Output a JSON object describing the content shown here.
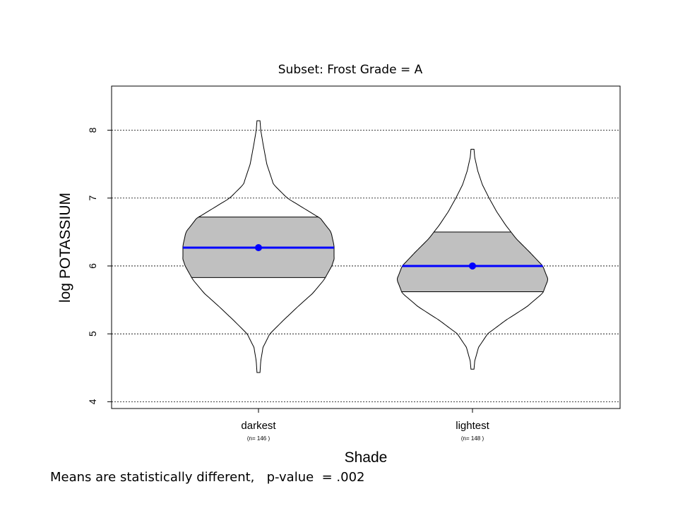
{
  "chart_data": {
    "type": "violin",
    "title": "Subset:  Frost Grade = A",
    "xlabel": "Shade",
    "ylabel": "log POTASSIUM",
    "ylim": [
      3.9,
      8.65
    ],
    "yticks": [
      4,
      5,
      6,
      7,
      8
    ],
    "grid": "horizontal dotted",
    "categories": [
      "darkest",
      "lightest"
    ],
    "counts": [
      "(n= 146 )",
      "(n= 148 )"
    ],
    "groups": [
      {
        "name": "darkest",
        "mean": 6.27,
        "q1": 5.83,
        "q3": 6.72,
        "min": 4.43,
        "max": 8.14,
        "density_profile": [
          [
            4.43,
            0.02
          ],
          [
            4.6,
            0.03
          ],
          [
            4.8,
            0.06
          ],
          [
            5.0,
            0.15
          ],
          [
            5.2,
            0.33
          ],
          [
            5.4,
            0.52
          ],
          [
            5.6,
            0.72
          ],
          [
            5.8,
            0.87
          ],
          [
            6.0,
            0.97
          ],
          [
            6.1,
            1.0
          ],
          [
            6.3,
            1.0
          ],
          [
            6.5,
            0.96
          ],
          [
            6.7,
            0.82
          ],
          [
            6.85,
            0.6
          ],
          [
            7.0,
            0.38
          ],
          [
            7.2,
            0.2
          ],
          [
            7.5,
            0.11
          ],
          [
            7.8,
            0.06
          ],
          [
            8.0,
            0.03
          ],
          [
            8.14,
            0.02
          ]
        ]
      },
      {
        "name": "lightest",
        "mean": 6.0,
        "q1": 5.62,
        "q3": 6.5,
        "min": 4.48,
        "max": 7.72,
        "density_profile": [
          [
            4.48,
            0.02
          ],
          [
            4.6,
            0.03
          ],
          [
            4.8,
            0.08
          ],
          [
            5.0,
            0.2
          ],
          [
            5.2,
            0.44
          ],
          [
            5.4,
            0.72
          ],
          [
            5.6,
            0.93
          ],
          [
            5.8,
            1.0
          ],
          [
            6.0,
            0.93
          ],
          [
            6.2,
            0.76
          ],
          [
            6.4,
            0.58
          ],
          [
            6.6,
            0.44
          ],
          [
            6.8,
            0.32
          ],
          [
            7.0,
            0.22
          ],
          [
            7.2,
            0.13
          ],
          [
            7.4,
            0.07
          ],
          [
            7.6,
            0.03
          ],
          [
            7.72,
            0.02
          ]
        ]
      }
    ],
    "colors": {
      "iqr_fill": "#c0c0c0",
      "mean_line": "#0000ff",
      "outline": "#000000"
    }
  },
  "footnote": "Means are statistically different,   p-value  = .002"
}
